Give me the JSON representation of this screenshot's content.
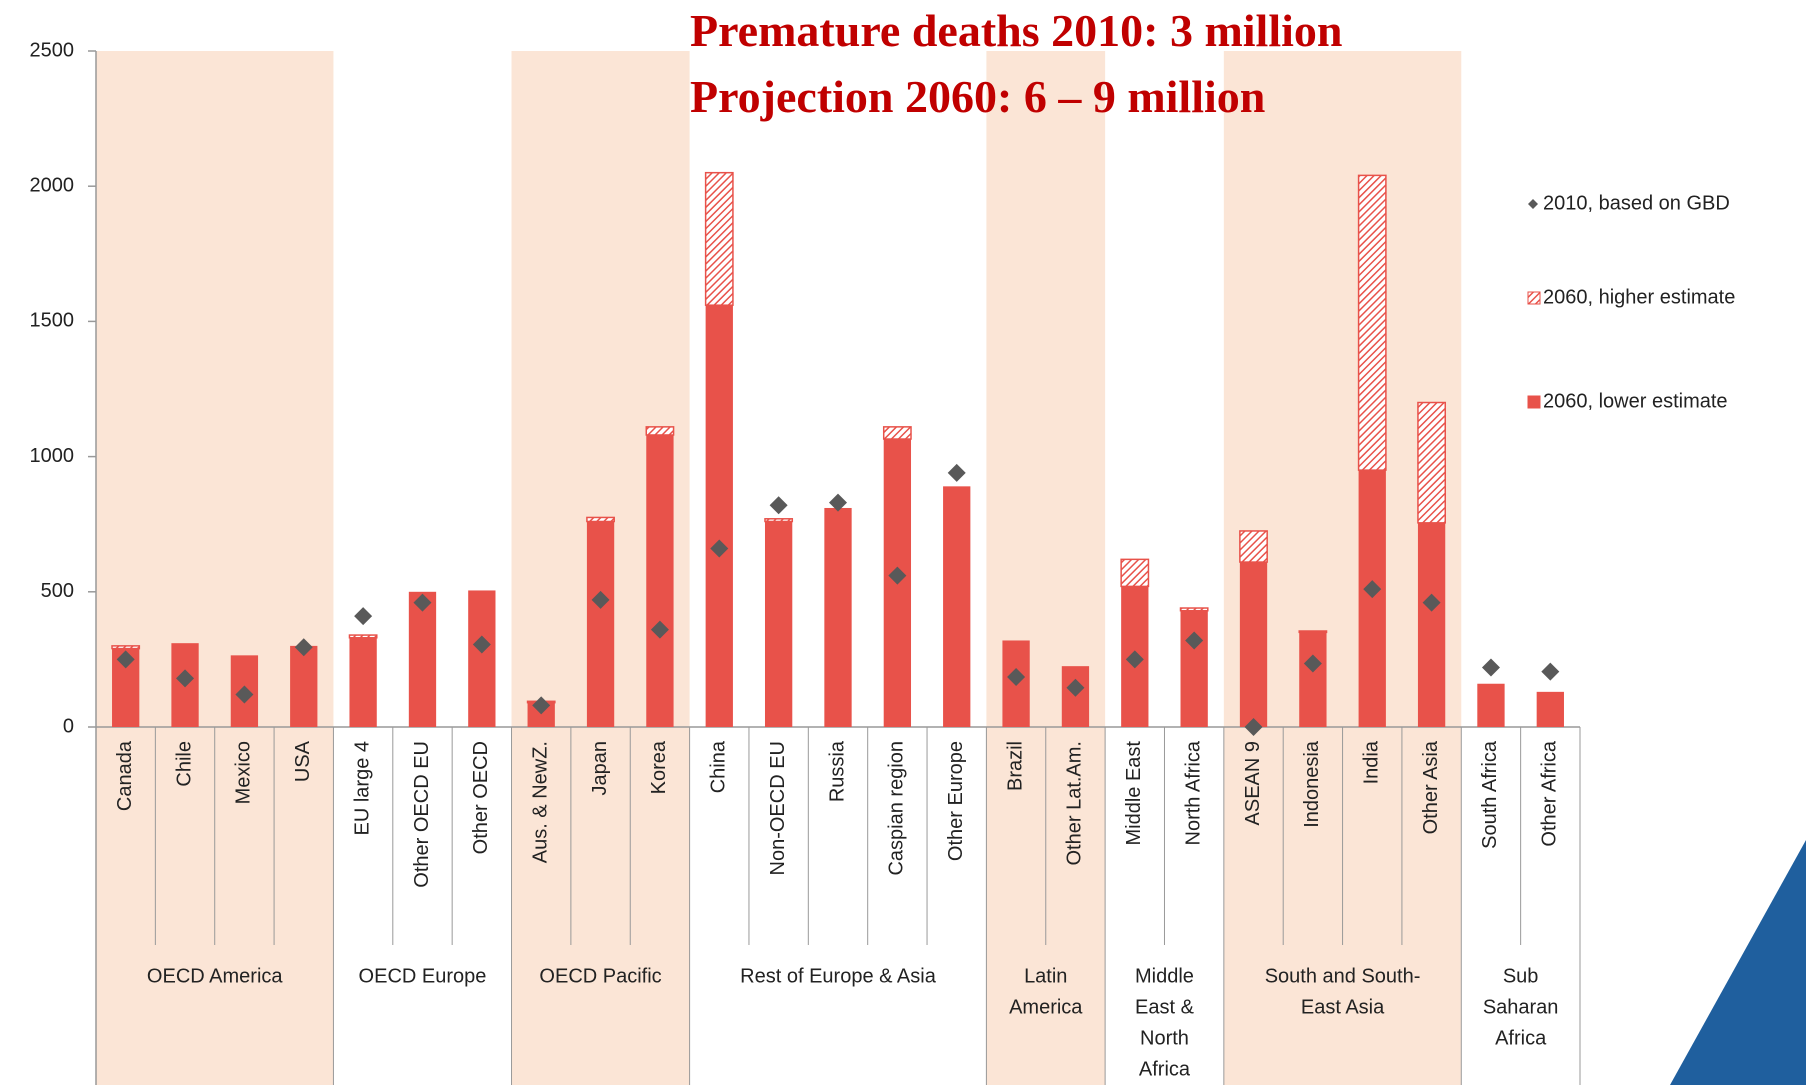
{
  "chart_data": {
    "type": "bar",
    "title": [
      "Premature deaths 2010: 3 million",
      "Projection 2060: 6 – 9 million"
    ],
    "categories": [
      "Canada",
      "Chile",
      "Mexico",
      "USA",
      "EU large 4",
      "Other OECD EU",
      "Other OECD",
      "Aus. & NewZ.",
      "Japan",
      "Korea",
      "China",
      "Non-OECD EU",
      "Russia",
      "Caspian region",
      "Other Europe",
      "Brazil",
      "Other Lat.Am.",
      "Middle East",
      "North Africa",
      "ASEAN 9",
      "Indonesia",
      "India",
      "Other Asia",
      "South Africa",
      "Other Africa"
    ],
    "groups": [
      {
        "label": [
          "OECD America"
        ],
        "count": 4,
        "shaded": true
      },
      {
        "label": [
          "OECD Europe"
        ],
        "count": 3,
        "shaded": false
      },
      {
        "label": [
          "OECD Pacific"
        ],
        "count": 3,
        "shaded": true
      },
      {
        "label": [
          "Rest of Europe & Asia"
        ],
        "count": 5,
        "shaded": false
      },
      {
        "label": [
          "Latin",
          "America"
        ],
        "count": 2,
        "shaded": true
      },
      {
        "label": [
          "Middle",
          "East &",
          "North",
          "Africa"
        ],
        "count": 2,
        "shaded": false
      },
      {
        "label": [
          "South and South-",
          "East Asia"
        ],
        "count": 4,
        "shaded": true
      },
      {
        "label": [
          "Sub",
          "Saharan",
          "Africa"
        ],
        "count": 2,
        "shaded": false
      }
    ],
    "series": [
      {
        "name": "2010, based on GBD",
        "color": "#595959",
        "marker": "diamond",
        "values": [
          250,
          180,
          120,
          295,
          410,
          460,
          305,
          80,
          470,
          360,
          660,
          820,
          830,
          560,
          940,
          185,
          145,
          250,
          320,
          0,
          235,
          510,
          460,
          220,
          205
        ]
      },
      {
        "name": "2060, higher estimate",
        "color": "#e8524a",
        "marker": "hatched",
        "values": [
          300,
          310,
          265,
          300,
          340,
          500,
          505,
          95,
          775,
          1110,
          2050,
          770,
          810,
          1110,
          890,
          320,
          225,
          620,
          440,
          725,
          355,
          2040,
          1200,
          160,
          130
        ]
      },
      {
        "name": "2060, lower estimate",
        "color": "#e8524a",
        "marker": "solid",
        "values": [
          290,
          310,
          265,
          300,
          330,
          500,
          505,
          90,
          760,
          1080,
          1560,
          760,
          810,
          1065,
          890,
          320,
          225,
          520,
          430,
          610,
          350,
          950,
          755,
          160,
          130
        ]
      }
    ],
    "ylim": [
      0,
      2500
    ],
    "yticks": [
      0,
      500,
      1000,
      1500,
      2000,
      2500
    ],
    "shade_color": "#fbe5d6"
  }
}
